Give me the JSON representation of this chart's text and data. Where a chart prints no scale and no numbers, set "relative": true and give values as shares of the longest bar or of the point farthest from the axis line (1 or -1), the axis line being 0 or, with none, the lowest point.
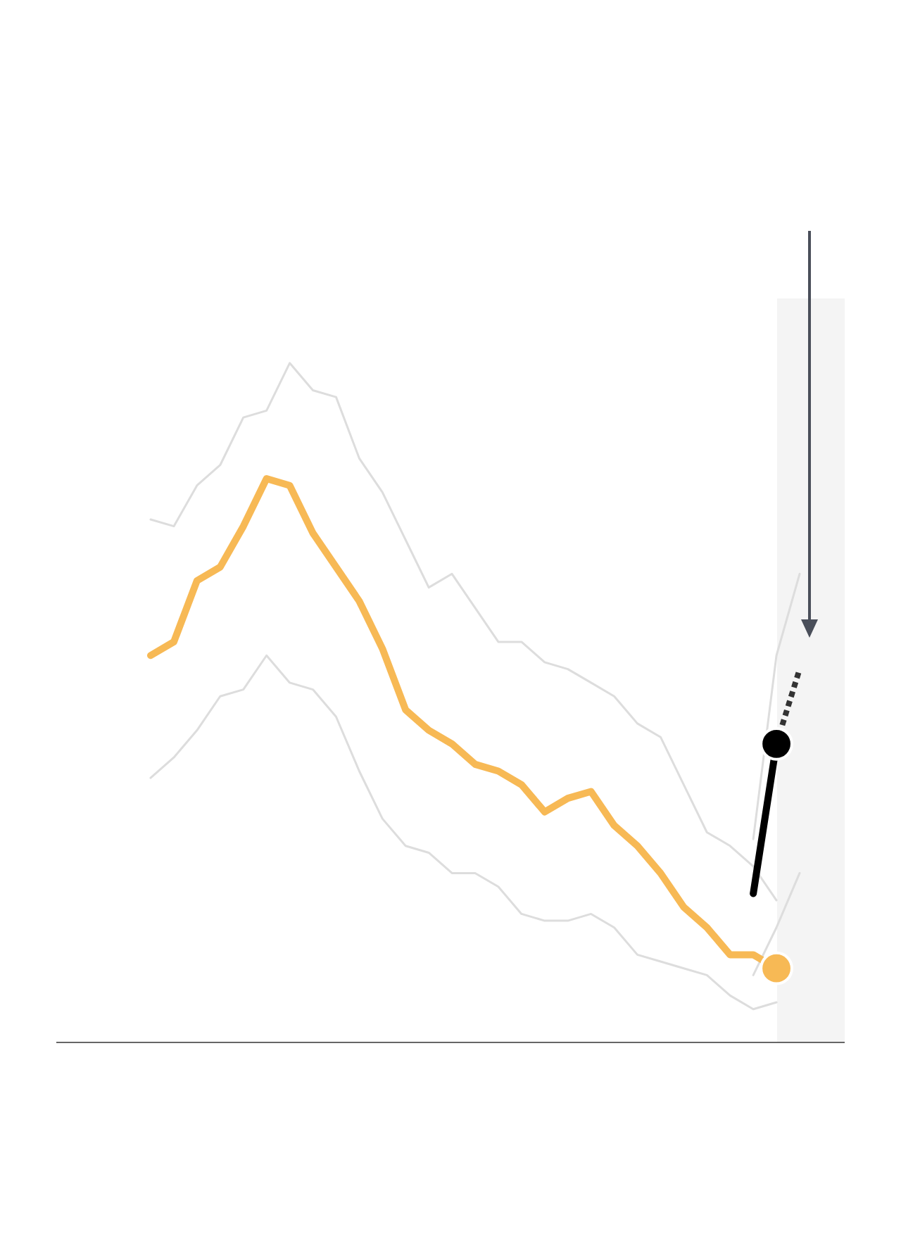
{
  "chart_data": {
    "type": "line",
    "relative": true,
    "categories": [
      null,
      null,
      null,
      null,
      null,
      null,
      null,
      null,
      null,
      null,
      null,
      null,
      null,
      null,
      null,
      null,
      null,
      null,
      null,
      null,
      null,
      null,
      null,
      null,
      null,
      null,
      null,
      null,
      null
    ],
    "series": [
      {
        "color": "#dddddd",
        "values": [
          0.77,
          0.76,
          0.82,
          0.85,
          0.92,
          0.93,
          1.0,
          0.96,
          0.95,
          0.86,
          0.81,
          0.74,
          0.67,
          0.69,
          0.64,
          0.59,
          0.59,
          0.56,
          0.55,
          0.53,
          0.51,
          0.47,
          0.45,
          0.38,
          0.31,
          0.29,
          0.26,
          0.21,
          null
        ]
      },
      {
        "color": "#dddddd",
        "values": [
          0.39,
          0.42,
          0.46,
          0.51,
          0.52,
          0.57,
          0.53,
          0.52,
          0.48,
          0.4,
          0.33,
          0.29,
          0.28,
          0.25,
          0.25,
          0.23,
          0.19,
          0.18,
          0.18,
          0.19,
          0.17,
          0.13,
          0.12,
          0.11,
          0.1,
          0.07,
          0.05,
          0.06,
          null
        ]
      },
      {
        "color": "#dddddd",
        "values": [
          null,
          null,
          null,
          null,
          null,
          null,
          null,
          null,
          null,
          null,
          null,
          null,
          null,
          null,
          null,
          null,
          null,
          null,
          null,
          null,
          null,
          null,
          null,
          null,
          null,
          null,
          0.3,
          0.57,
          0.69
        ]
      },
      {
        "color": "#dddddd",
        "values": [
          null,
          null,
          null,
          null,
          null,
          null,
          null,
          null,
          null,
          null,
          null,
          null,
          null,
          null,
          null,
          null,
          null,
          null,
          null,
          null,
          null,
          null,
          null,
          null,
          null,
          null,
          0.1,
          0.17,
          0.25
        ]
      },
      {
        "color": "#f7b955",
        "values": [
          0.57,
          0.59,
          0.68,
          0.7,
          0.76,
          0.83,
          0.82,
          0.75,
          0.7,
          0.65,
          0.58,
          0.49,
          0.46,
          0.44,
          0.41,
          0.4,
          0.38,
          0.34,
          0.36,
          0.37,
          0.32,
          0.29,
          0.25,
          0.2,
          0.17,
          0.13,
          0.13,
          0.11,
          null
        ]
      },
      {
        "color": "#000000",
        "values": [
          null,
          null,
          null,
          null,
          null,
          null,
          null,
          null,
          null,
          null,
          null,
          null,
          null,
          null,
          null,
          null,
          null,
          null,
          null,
          null,
          null,
          null,
          null,
          null,
          null,
          null,
          0.22,
          0.44,
          null
        ]
      },
      {
        "color": "#333333",
        "line_style": "dashed",
        "values": [
          null,
          null,
          null,
          null,
          null,
          null,
          null,
          null,
          null,
          null,
          null,
          null,
          null,
          null,
          null,
          null,
          null,
          null,
          null,
          null,
          null,
          null,
          null,
          null,
          null,
          null,
          null,
          0.44,
          0.55
        ]
      },
      {
        "marker": "circle",
        "color": "#f7b955",
        "values": [
          null,
          null,
          null,
          null,
          null,
          null,
          null,
          null,
          null,
          null,
          null,
          null,
          null,
          null,
          null,
          null,
          null,
          null,
          null,
          null,
          null,
          null,
          null,
          null,
          null,
          null,
          null,
          0.11,
          null
        ]
      },
      {
        "marker": "circle",
        "color": "#000000",
        "values": [
          null,
          null,
          null,
          null,
          null,
          null,
          null,
          null,
          null,
          null,
          null,
          null,
          null,
          null,
          null,
          null,
          null,
          null,
          null,
          null,
          null,
          null,
          null,
          null,
          null,
          null,
          null,
          0.44,
          null
        ]
      }
    ]
  }
}
